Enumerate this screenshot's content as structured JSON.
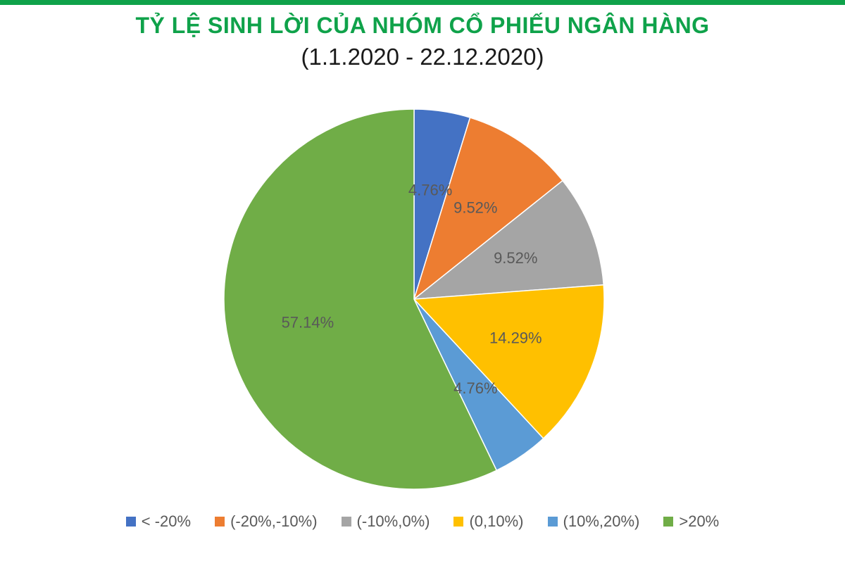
{
  "header": {
    "title": "TỶ LỆ SINH LỜI CỦA NHÓM CỔ PHIẾU NGÂN HÀNG",
    "subtitle": "(1.1.2020 - 22.12.2020)"
  },
  "colors": {
    "brand": "#0fa24a",
    "label_text": "#595959"
  },
  "chart_data": {
    "type": "pie",
    "title": "TỶ LỆ SINH LỜI CỦA NHÓM CỔ PHIẾU NGÂN HÀNG",
    "subtitle": "(1.1.2020 - 22.12.2020)",
    "start_angle": "12 o'clock",
    "direction": "clockwise",
    "legend_position": "bottom",
    "slices": [
      {
        "label": "< -20%",
        "value": 4.76,
        "data_label": "4.76%",
        "color": "#4472c4"
      },
      {
        "label": "(-20%,-10%)",
        "value": 9.52,
        "data_label": "9.52%",
        "color": "#ed7d31"
      },
      {
        "label": "(-10%,0%)",
        "value": 9.52,
        "data_label": "9.52%",
        "color": "#a5a5a5"
      },
      {
        "label": "(0,10%)",
        "value": 14.29,
        "data_label": "14.29%",
        "color": "#ffc000"
      },
      {
        "label": "(10%,20%)",
        "value": 4.76,
        "data_label": "4.76%",
        "color": "#5b9bd5"
      },
      {
        "label": ">20%",
        "value": 57.14,
        "data_label": "57.14%",
        "color": "#70ad47"
      }
    ]
  }
}
